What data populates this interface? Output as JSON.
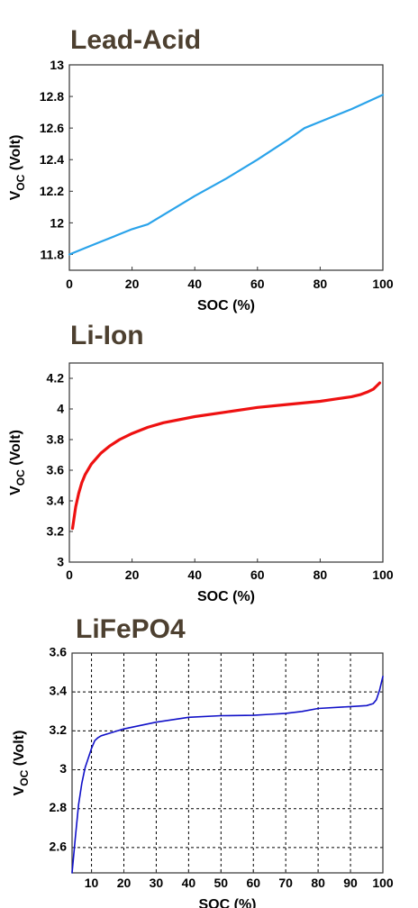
{
  "chart_data": [
    {
      "type": "line",
      "title": "Lead-Acid",
      "xlabel": "SOC (%)",
      "ylabel": "V_OC (Volt)",
      "xlim": [
        0,
        100
      ],
      "ylim": [
        11.7,
        13
      ],
      "xticks": [
        0,
        20,
        40,
        60,
        80,
        100
      ],
      "yticks": [
        11.8,
        12,
        12.2,
        12.4,
        12.6,
        12.8,
        13
      ],
      "grid": false,
      "series": [
        {
          "color": "#2aa3ea",
          "x": [
            0,
            5,
            10,
            15,
            20,
            25,
            30,
            35,
            40,
            50,
            60,
            70,
            75,
            80,
            90,
            100
          ],
          "y": [
            11.8,
            11.84,
            11.88,
            11.92,
            11.96,
            11.99,
            12.05,
            12.11,
            12.17,
            12.28,
            12.4,
            12.53,
            12.6,
            12.64,
            12.72,
            12.81
          ]
        }
      ]
    },
    {
      "type": "line",
      "title": "Li-Ion",
      "xlabel": "SOC (%)",
      "ylabel": "V_OC (Volt)",
      "xlim": [
        0,
        100
      ],
      "ylim": [
        3,
        4.3
      ],
      "xticks": [
        0,
        20,
        40,
        60,
        80,
        100
      ],
      "yticks": [
        3,
        3.2,
        3.4,
        3.6,
        3.8,
        4,
        4.2
      ],
      "grid": false,
      "series": [
        {
          "color": "#ee1111",
          "x": [
            1,
            2,
            3,
            4,
            5,
            7,
            10,
            13,
            16,
            20,
            25,
            30,
            40,
            50,
            60,
            70,
            80,
            85,
            90,
            93,
            95,
            97,
            99
          ],
          "y": [
            3.22,
            3.36,
            3.45,
            3.52,
            3.57,
            3.64,
            3.71,
            3.76,
            3.8,
            3.84,
            3.88,
            3.91,
            3.95,
            3.98,
            4.01,
            4.03,
            4.05,
            4.065,
            4.08,
            4.095,
            4.11,
            4.13,
            4.17
          ]
        }
      ]
    },
    {
      "type": "line",
      "title": "LiFePO4",
      "xlabel": "SOC (%)",
      "ylabel": "V_OC (Volt)",
      "xlim": [
        4,
        100
      ],
      "ylim": [
        2.47,
        3.6
      ],
      "xticks": [
        10,
        20,
        30,
        40,
        50,
        60,
        70,
        80,
        90,
        100
      ],
      "yticks": [
        2.6,
        2.8,
        3,
        3.2,
        3.4,
        3.6
      ],
      "grid": true,
      "series": [
        {
          "color": "#1010c8",
          "x": [
            4,
            5,
            6,
            7,
            8,
            9,
            10,
            11,
            12,
            13,
            15,
            20,
            30,
            40,
            50,
            60,
            65,
            70,
            75,
            80,
            90,
            95,
            97,
            98,
            99,
            100
          ],
          "y": [
            2.47,
            2.65,
            2.82,
            2.93,
            3.01,
            3.06,
            3.11,
            3.15,
            3.165,
            3.175,
            3.185,
            3.21,
            3.245,
            3.27,
            3.278,
            3.28,
            3.285,
            3.29,
            3.3,
            3.315,
            3.325,
            3.33,
            3.34,
            3.36,
            3.41,
            3.48
          ]
        }
      ]
    }
  ]
}
